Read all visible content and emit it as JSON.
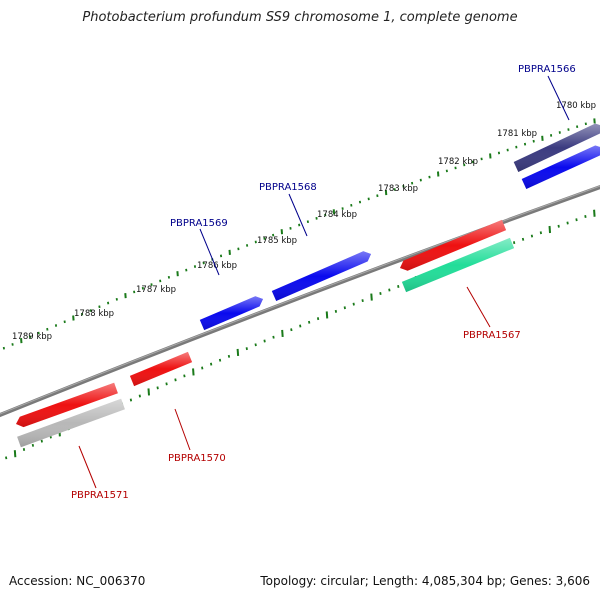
{
  "title": "Photobacterium profundum SS9 chromosome 1, complete genome",
  "footer": {
    "accession": "Accession: NC_006370",
    "summary": "Topology: circular; Length: 4,085,304 bp; Genes: 3,606"
  },
  "colors": {
    "backbone": "#777777",
    "tick": "#1a7a1a",
    "plus_label": "#00008b",
    "minus_label": "#b40000",
    "blue_gene": "#0a0aee",
    "red_gene": "#ee1111",
    "dark_blue_gene": "#3b3b80",
    "grey_gene": "#b8b8b8",
    "teal_gene": "#22dd99"
  },
  "scale_ticks": [
    {
      "label": "1780 kbp"
    },
    {
      "label": "1781 kbp"
    },
    {
      "label": "1782 kbp"
    },
    {
      "label": "1783 kbp"
    },
    {
      "label": "1784 kbp"
    },
    {
      "label": "1785 kbp"
    },
    {
      "label": "1786 kbp"
    },
    {
      "label": "1787 kbp"
    },
    {
      "label": "1788 kbp"
    },
    {
      "label": "1789 kbp"
    }
  ],
  "genes": [
    {
      "id": "g1566",
      "label": "PBPRA1566",
      "strand": "plus",
      "color": "dark_blue_gene"
    },
    {
      "id": "g1566b",
      "label": "",
      "strand": "plus",
      "color": "blue_gene"
    },
    {
      "id": "g1567",
      "label": "PBPRA1567",
      "strand": "minus",
      "color": "red_gene"
    },
    {
      "id": "g1567b",
      "label": "",
      "strand": "minus",
      "color": "teal_gene"
    },
    {
      "id": "g1568",
      "label": "PBPRA1568",
      "strand": "plus",
      "color": "blue_gene"
    },
    {
      "id": "g1569",
      "label": "PBPRA1569",
      "strand": "plus",
      "color": "blue_gene"
    },
    {
      "id": "g1570",
      "label": "PBPRA1570",
      "strand": "minus",
      "color": "red_gene"
    },
    {
      "id": "g1571",
      "label": "PBPRA1571",
      "strand": "minus",
      "color": "red_gene"
    },
    {
      "id": "g1571b",
      "label": "",
      "strand": "minus",
      "color": "grey_gene"
    }
  ]
}
